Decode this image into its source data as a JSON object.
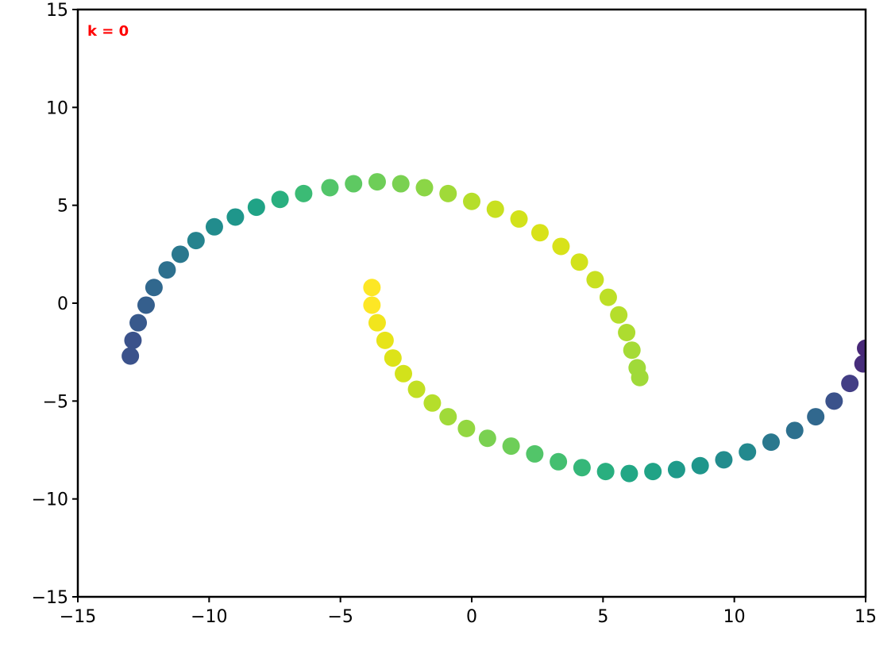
{
  "chart_data": {
    "type": "scatter",
    "annotation": "k =  0",
    "annotation_color": "#ff0000",
    "xlim": [
      -15,
      15
    ],
    "ylim": [
      -15,
      15
    ],
    "xticks": [
      {
        "value": -15,
        "label": "−15"
      },
      {
        "value": -10,
        "label": "−10"
      },
      {
        "value": -5,
        "label": "−5"
      },
      0,
      5,
      10,
      15
    ],
    "yticks": [
      {
        "value": -15,
        "label": "−15"
      },
      {
        "value": -10,
        "label": "−10"
      },
      {
        "value": -5,
        "label": "−5"
      },
      0,
      5,
      10,
      15
    ],
    "series": [
      {
        "x": [
          -13,
          -12.9,
          -12.7,
          -12.4,
          -12.1,
          -11.6,
          -11.1,
          -10.5,
          -9.8,
          -9,
          -8.2,
          -7.3,
          -6.4,
          -5.4,
          -4.5,
          -3.6,
          -2.7,
          -1.8,
          -0.9,
          0,
          0.9,
          1.8,
          2.6,
          3.4,
          4.1,
          4.7,
          5.2,
          5.6,
          5.9,
          6.1,
          6.3,
          6.4
        ],
        "values": [
          -2.7,
          -1.9,
          -1.0,
          -0.1,
          0.8,
          1.7,
          2.5,
          3.2,
          3.9,
          4.4,
          4.9,
          5.3,
          5.6,
          5.9,
          6.1,
          6.2,
          6.1,
          5.9,
          5.6,
          5.2,
          4.8,
          4.3,
          3.6,
          2.9,
          2.1,
          1.2,
          0.3,
          -0.6,
          -1.5,
          -2.4,
          -3.3,
          -3.8
        ],
        "colors": [
          "#3b528b",
          "#3b528b",
          "#38598c",
          "#355f8d",
          "#31688e",
          "#2d708e",
          "#2a788e",
          "#25838e",
          "#228c8d",
          "#1f968b",
          "#20a386",
          "#29af7f",
          "#3bbb75",
          "#52c569",
          "#5ec962",
          "#6ece58",
          "#7ad151",
          "#8bd646",
          "#a0da39",
          "#b5de2b",
          "#c8e020",
          "#d2e21b",
          "#d8e219",
          "#d8e219",
          "#d2e21b",
          "#c8e020",
          "#bddf26",
          "#b5de2b",
          "#addc30",
          "#a5db36",
          "#a0da39",
          "#a0da39"
        ]
      },
      {
        "x": [
          -3.8,
          -3.8,
          -3.6,
          -3.3,
          -3.0,
          -2.6,
          -2.1,
          -1.5,
          -0.9,
          -0.2,
          0.6,
          1.5,
          2.4,
          3.3,
          4.2,
          5.1,
          6.0,
          6.9,
          7.8,
          8.7,
          9.6,
          10.5,
          11.4,
          12.3,
          13.1,
          13.8,
          14.4,
          14.9,
          15
        ],
        "values": [
          0.8,
          -0.1,
          -1.0,
          -1.9,
          -2.8,
          -3.6,
          -4.4,
          -5.1,
          -5.8,
          -6.4,
          -6.9,
          -7.3,
          -7.7,
          -8.1,
          -8.4,
          -8.6,
          -8.7,
          -8.6,
          -8.5,
          -8.3,
          -8.0,
          -7.6,
          -7.1,
          -6.5,
          -5.8,
          -5.0,
          -4.1,
          -3.1,
          -2.3
        ],
        "colors": [
          "#fde725",
          "#fde725",
          "#f1e51d",
          "#e7e419",
          "#dde318",
          "#d2e21b",
          "#c2df23",
          "#b5de2b",
          "#a0da39",
          "#93d741",
          "#7ad151",
          "#6ece58",
          "#52c569",
          "#44bf70",
          "#35b779",
          "#29af7f",
          "#22a785",
          "#20a386",
          "#1f9a8a",
          "#1f968b",
          "#228c8d",
          "#23898e",
          "#2a788e",
          "#2d708e",
          "#31688e",
          "#3b528b",
          "#433e85",
          "#472d7b",
          "#482878"
        ]
      }
    ]
  }
}
